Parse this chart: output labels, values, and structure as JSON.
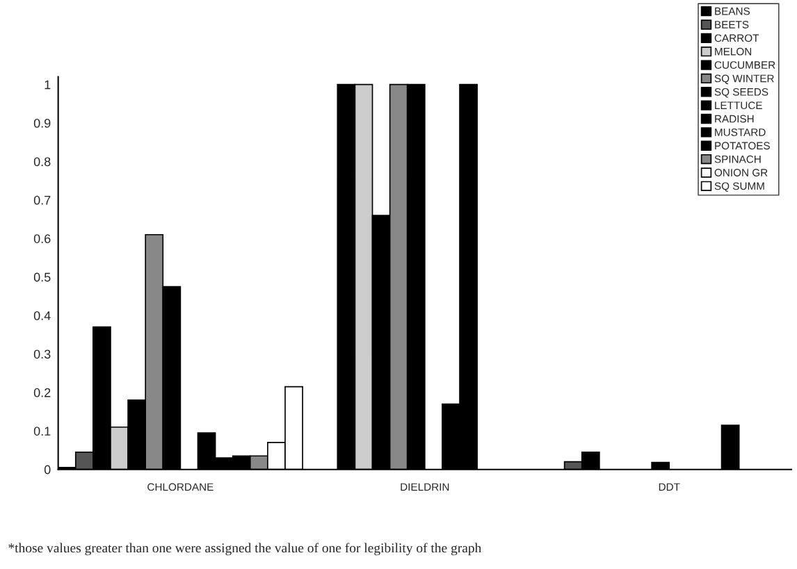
{
  "chart_data": {
    "type": "bar",
    "categories": [
      "CHLORDANE",
      "DIELDRIN",
      "DDT"
    ],
    "series": [
      {
        "name": "BEANS",
        "color": "#000000",
        "values": [
          0.005,
          null,
          null
        ]
      },
      {
        "name": "BEETS",
        "color": "#555555",
        "values": [
          0.045,
          null,
          0.02
        ]
      },
      {
        "name": "CARROT",
        "color": "#000000",
        "values": [
          0.37,
          1,
          0.045
        ]
      },
      {
        "name": "MELON",
        "color": "#cccccc",
        "values": [
          0.11,
          1,
          null
        ]
      },
      {
        "name": "CUCUMBER",
        "color": "#000000",
        "values": [
          0.18,
          0.66,
          null
        ]
      },
      {
        "name": "SQ WINTER",
        "color": "#888888",
        "values": [
          0.61,
          1,
          null
        ]
      },
      {
        "name": "SQ SEEDS",
        "color": "#000000",
        "values": [
          0.475,
          1,
          0.018
        ]
      },
      {
        "name": "LETTUCE",
        "color": "#000000",
        "values": [
          null,
          null,
          null
        ]
      },
      {
        "name": "RADISH",
        "color": "#000000",
        "values": [
          0.095,
          0.17,
          null
        ]
      },
      {
        "name": "MUSTARD",
        "color": "#000000",
        "values": [
          0.03,
          1,
          null
        ]
      },
      {
        "name": "POTATOES",
        "color": "#000000",
        "values": [
          0.035,
          null,
          0.115
        ]
      },
      {
        "name": "SPINACH",
        "color": "#888888",
        "values": [
          0.035,
          null,
          null
        ]
      },
      {
        "name": "ONION GR",
        "color": "#ffffff",
        "values": [
          0.07,
          null,
          null
        ]
      },
      {
        "name": "SQ SUMM",
        "color": "#ffffff",
        "values": [
          0.215,
          null,
          null
        ]
      }
    ],
    "ylim": [
      0,
      1.02
    ],
    "yticks": [
      0,
      0.1,
      0.2,
      0.3,
      0.4,
      0.5,
      0.6,
      0.7,
      0.8,
      0.9,
      1
    ],
    "grid": false,
    "legend": "top right",
    "annotations": [
      "*those values greater than one were assigned the value of one for legibility of the graph"
    ]
  }
}
